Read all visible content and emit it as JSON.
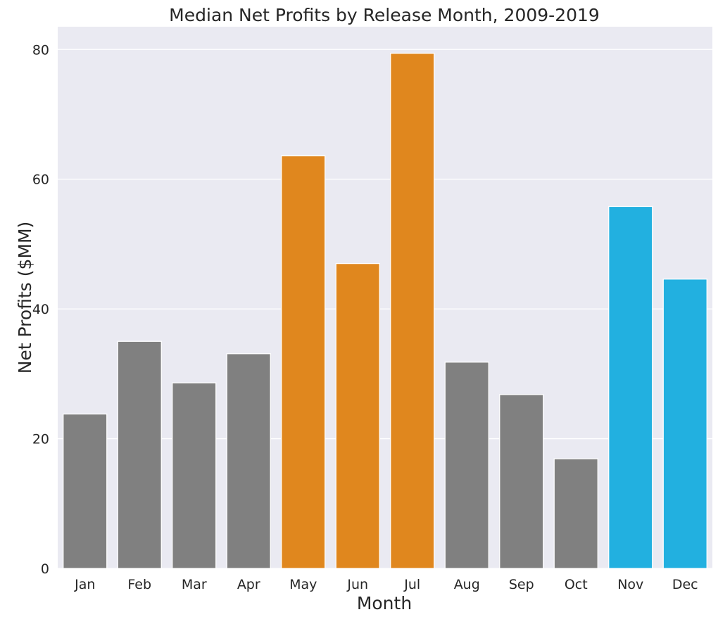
{
  "chart_data": {
    "type": "bar",
    "title": "Median Net Profits by Release Month, 2009-2019",
    "xlabel": "Month",
    "ylabel": "Net Profits ($MM)",
    "categories": [
      "Jan",
      "Feb",
      "Mar",
      "Apr",
      "May",
      "Jun",
      "Jul",
      "Aug",
      "Sep",
      "Oct",
      "Nov",
      "Dec"
    ],
    "values": [
      23.8,
      35.0,
      28.6,
      33.1,
      63.6,
      47.0,
      79.4,
      31.8,
      26.8,
      16.9,
      55.8,
      44.6
    ],
    "bar_colors": [
      "#808080",
      "#808080",
      "#808080",
      "#808080",
      "#e0871e",
      "#e0871e",
      "#e0871e",
      "#808080",
      "#808080",
      "#808080",
      "#22b0e0",
      "#22b0e0"
    ],
    "ylim": [
      0,
      83.5
    ],
    "yticks": [
      0,
      20,
      40,
      60,
      80
    ],
    "grid": true,
    "legend": false,
    "background": "#eaeaf2"
  }
}
